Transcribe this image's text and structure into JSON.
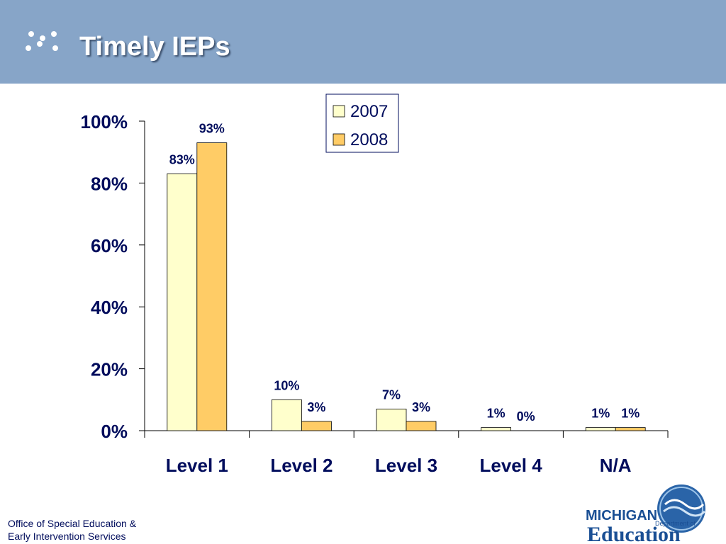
{
  "header": {
    "title": "Timely IEPs"
  },
  "footer": {
    "line1": "Office of Special Education &",
    "line2": "Early Intervention Services"
  },
  "logo": {
    "state": "MICHIGAN",
    "dept": "Department of",
    "word": "Education"
  },
  "colors": {
    "header_band": "#87a5c8",
    "series_2007": "#ffffcc",
    "series_2008": "#ffcc66",
    "text_navy": "#000c5c"
  },
  "chart_data": {
    "type": "bar",
    "categories": [
      "Level 1",
      "Level 2",
      "Level 3",
      "Level 4",
      "N/A"
    ],
    "series": [
      {
        "name": "2007",
        "values": [
          83,
          10,
          7,
          1,
          1
        ],
        "labels": [
          "83%",
          "10%",
          "7%",
          "1%",
          "1%"
        ],
        "color": "#ffffcc"
      },
      {
        "name": "2008",
        "values": [
          93,
          3,
          3,
          0,
          1
        ],
        "labels": [
          "93%",
          "3%",
          "3%",
          "0%",
          "1%"
        ],
        "color": "#ffcc66"
      }
    ],
    "yticks": [
      "0%",
      "20%",
      "40%",
      "60%",
      "80%",
      "100%"
    ],
    "ylim": [
      0,
      100
    ],
    "grid": false,
    "legend": "top-right"
  }
}
